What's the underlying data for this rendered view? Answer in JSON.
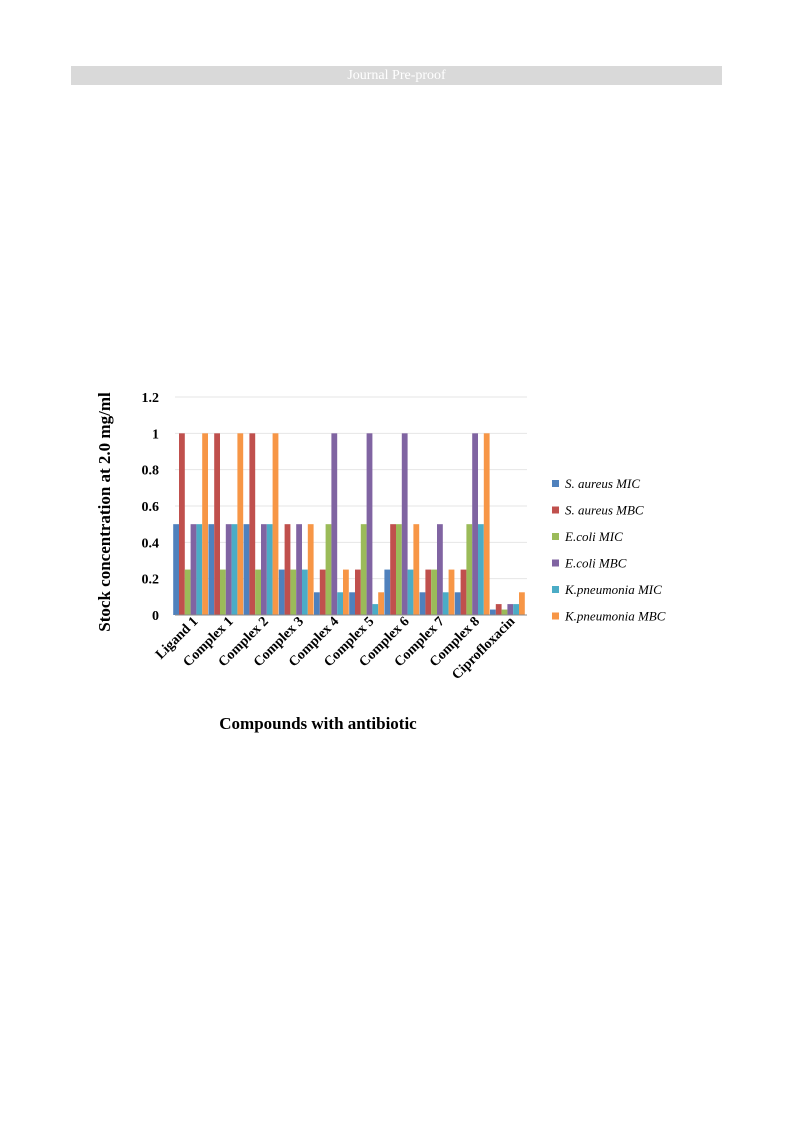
{
  "header": {
    "banner_text": "Journal Pre-proof"
  },
  "chart_data": {
    "type": "bar",
    "title": "",
    "xlabel": "Compounds with antibiotic",
    "ylabel": "Stock concentration at 2.0 mg/ml",
    "ylim": [
      0,
      1.2
    ],
    "yticks": [
      "0",
      "0.2",
      "0.4",
      "0.6",
      "0.8",
      "1",
      "1.2"
    ],
    "ytick_values": [
      0,
      0.2,
      0.4,
      0.6,
      0.8,
      1,
      1.2
    ],
    "grid": true,
    "legend_position": "right",
    "categories": [
      "Ligand 1",
      "Complex 1",
      "Complex 2",
      "Complex 3",
      "Complex 4",
      "Complex 5",
      "Complex 6",
      "Complex 7",
      "Complex 8",
      "Ciprofloxacin"
    ],
    "series": [
      {
        "name": "S. aureus MIC",
        "color": "#4f81bd",
        "values": [
          0.5,
          0.5,
          0.5,
          0.25,
          0.125,
          0.125,
          0.25,
          0.125,
          0.125,
          0.03
        ]
      },
      {
        "name": "S. aureus MBC",
        "color": "#c0504d",
        "values": [
          1,
          1,
          1,
          0.5,
          0.25,
          0.25,
          0.5,
          0.25,
          0.25,
          0.06
        ]
      },
      {
        "name": "E.coli MIC",
        "color": "#9bbb59",
        "values": [
          0.25,
          0.25,
          0.25,
          0.25,
          0.5,
          0.5,
          0.5,
          0.25,
          0.5,
          0.03
        ]
      },
      {
        "name": "E.coli MBC",
        "color": "#8064a2",
        "values": [
          0.5,
          0.5,
          0.5,
          0.5,
          1,
          1,
          1,
          0.5,
          1,
          0.06
        ]
      },
      {
        "name": "K.pneumonia MIC",
        "color": "#4bacc6",
        "values": [
          0.5,
          0.5,
          0.5,
          0.25,
          0.125,
          0.06,
          0.25,
          0.125,
          0.5,
          0.06
        ]
      },
      {
        "name": "K.pneumonia MBC",
        "color": "#f79646",
        "values": [
          1,
          1,
          1,
          0.5,
          0.25,
          0.125,
          0.5,
          0.25,
          1,
          0.125
        ]
      }
    ]
  }
}
